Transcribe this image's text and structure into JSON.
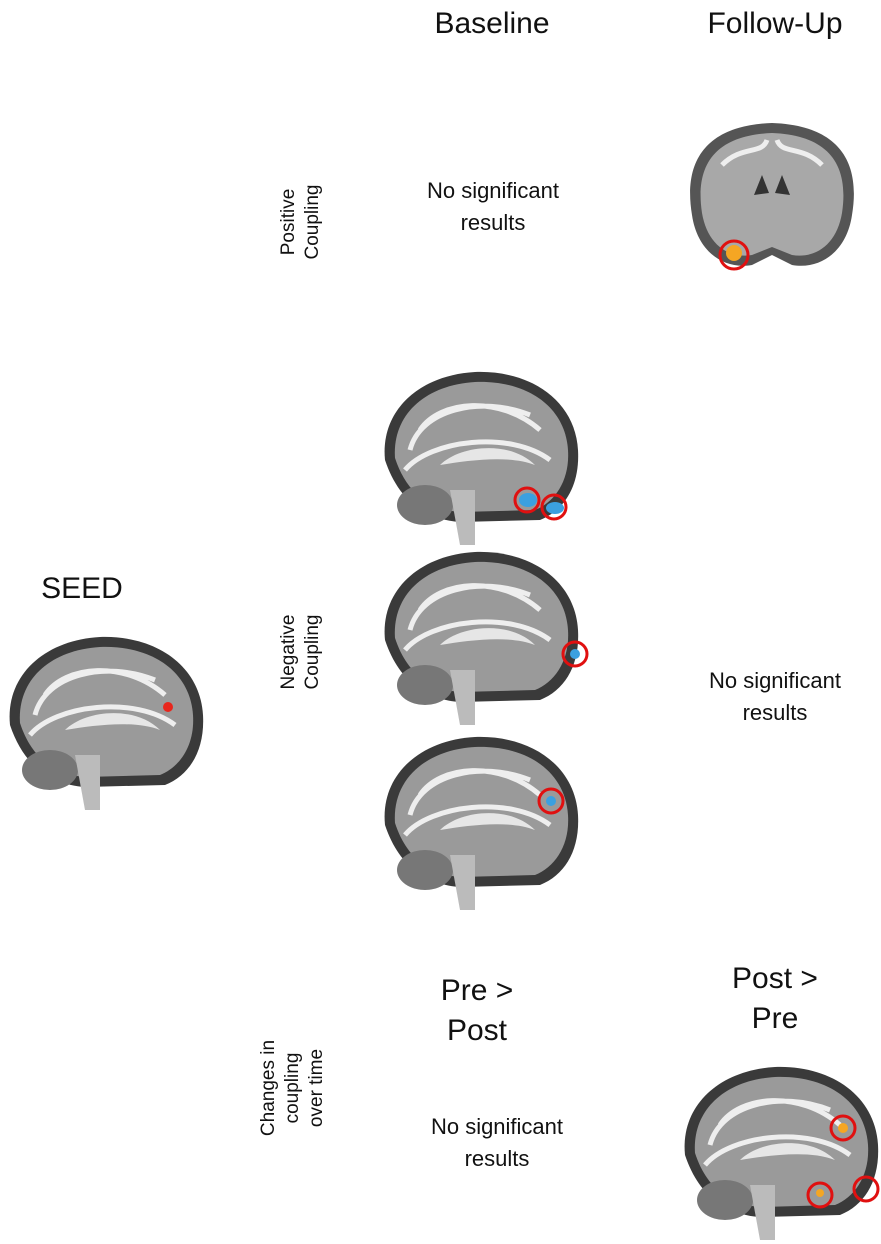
{
  "columns": {
    "baseline": "Baseline",
    "follow_up": "Follow-Up"
  },
  "seed": "SEED",
  "rows": [
    {
      "label": [
        "Positive",
        "Coupling"
      ],
      "baseline": [
        "No significant",
        "results"
      ]
    },
    {
      "label": [
        "Negative",
        "Coupling"
      ],
      "follow_up": [
        "No significant",
        "results"
      ]
    },
    {
      "label": [
        "Changes in",
        "coupling",
        "over time"
      ],
      "pre_post": [
        "Pre >",
        "Post"
      ],
      "post_pre": [
        "Post >",
        "Pre"
      ],
      "baseline": [
        "No significant",
        "results"
      ]
    }
  ]
}
